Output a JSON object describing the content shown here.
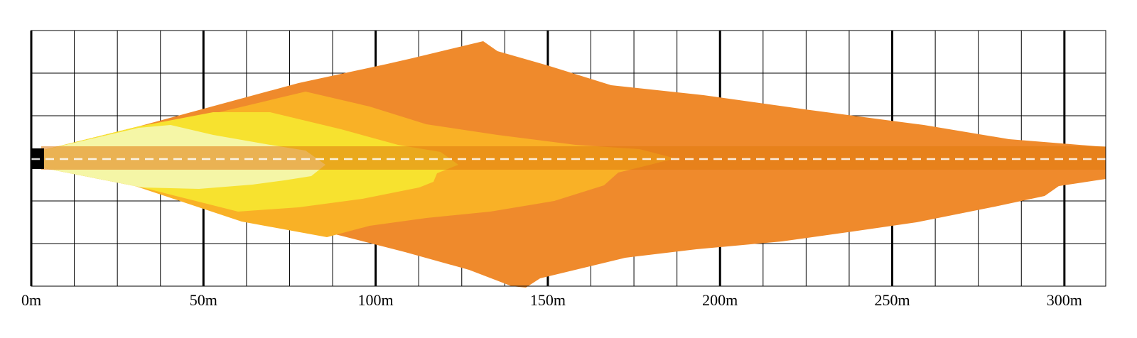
{
  "chart_data": {
    "type": "area",
    "x_unit": "m",
    "xlim": [
      0,
      312
    ],
    "x_ticks": [
      {
        "value": 0,
        "label": "0m"
      },
      {
        "value": 50,
        "label": "50m"
      },
      {
        "value": 100,
        "label": "100m"
      },
      {
        "value": 150,
        "label": "150m"
      },
      {
        "value": 200,
        "label": "200m"
      },
      {
        "value": 250,
        "label": "250m"
      },
      {
        "value": 300,
        "label": "300m"
      }
    ],
    "grid": true,
    "grid_step_m": 12.5,
    "grid_rows": 6,
    "centerline": "dashed",
    "zones": [
      {
        "color": "#ef8a2c",
        "reach_m": 312
      },
      {
        "color": "#f9b126",
        "reach_m": 189
      },
      {
        "color": "#f7e22f",
        "reach_m": 124
      },
      {
        "color": "#f5f6a6",
        "reach_m": 85
      }
    ],
    "road_band_color": "#e07a0e"
  }
}
